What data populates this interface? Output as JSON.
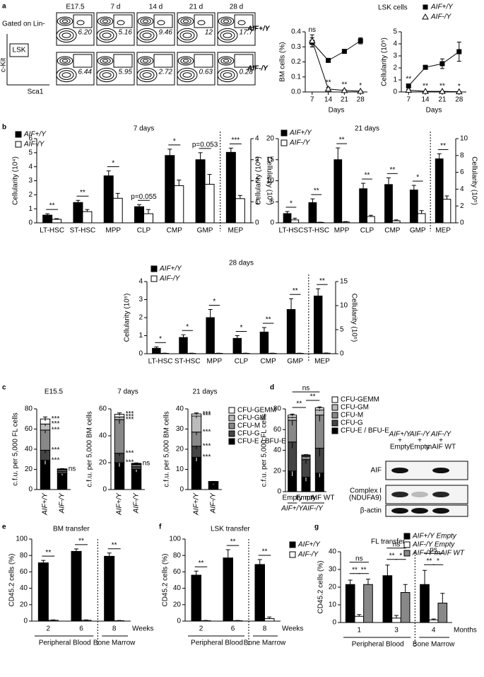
{
  "flow": {
    "panel": "a",
    "columns": [
      "E17.5",
      "7 d",
      "14 d",
      "21 d",
      "28 d"
    ],
    "gate": "Gated on Lin-",
    "gate_box": "LSK",
    "ylabel": "c-Kit",
    "xlabel": "Sca1",
    "rows": [
      {
        "name": "AIF+/Y",
        "values": [
          "6.20",
          "5.16",
          "9.46",
          "12",
          "17.7"
        ]
      },
      {
        "name": "AIF-/Y",
        "values": [
          "6.44",
          "5.95",
          "2.72",
          "0.63",
          "0.28"
        ]
      }
    ]
  },
  "chart_data": [
    {
      "type": "line",
      "ylabel": "BM cells (%)",
      "xlabel": "Days",
      "x": [
        7,
        14,
        21,
        28
      ],
      "xlim": [
        4,
        31
      ],
      "xticks": [
        7,
        14,
        21,
        28
      ],
      "ylim": [
        0,
        0.4
      ],
      "yticks": [
        {
          "value": 0,
          "label": "0.0"
        },
        0.1,
        0.2,
        0.3,
        0.4
      ],
      "series": [
        {
          "color": "#000000",
          "marker": "square",
          "values": [
            0.33,
            0.21,
            0.27,
            0.34
          ],
          "errors": [
            0.03,
            0.01,
            0.01,
            0.02
          ]
        },
        {
          "color": "#000000",
          "marker": "triangle",
          "values": [
            0.34,
            0.02,
            0.01,
            0.005
          ],
          "errors": [
            0.04,
            0.01,
            0.005,
            0.003
          ]
        }
      ],
      "annotations": [
        "ns",
        "**",
        "**",
        "*"
      ]
    },
    {
      "type": "line",
      "title": "LSK cells",
      "ylabel": "Cellularity (10⁵)",
      "xlabel": "Days",
      "x": [
        7,
        14,
        21,
        28
      ],
      "xlim": [
        4,
        31
      ],
      "xticks": [
        7,
        14,
        21,
        28
      ],
      "ylim": [
        0,
        5
      ],
      "yticks": [
        0,
        1,
        2,
        3,
        4,
        5
      ],
      "series": [
        {
          "name": "AIF+/Y",
          "color": "#000000",
          "marker": "square",
          "values": [
            0.5,
            2.05,
            2.35,
            3.35
          ],
          "errors": [
            0.15,
            0.05,
            0.4,
            0.8
          ]
        },
        {
          "name": "AIF-/Y",
          "color": "#000000",
          "marker": "triangle",
          "values": [
            0.15,
            0.05,
            0.05,
            0.02
          ],
          "errors": [
            0.05,
            0.02,
            0.02,
            0.01
          ]
        }
      ],
      "annotations": [
        "**",
        "**",
        "**",
        "*"
      ]
    },
    {
      "type": "bar",
      "panel": "b",
      "title": "7 days",
      "ylabel": "Cellularity (10⁴)",
      "y2label": "Cellularity (10⁵)",
      "categories": [
        "LT-HSC",
        "ST-HSC",
        "MPP",
        "CLP",
        "CMP",
        "GMP",
        "MEP"
      ],
      "ylim": [
        0,
        6
      ],
      "yticks": [
        0,
        1,
        2,
        3,
        4,
        5,
        6
      ],
      "y2lim": [
        0,
        4
      ],
      "y2ticks": [
        0,
        1,
        2,
        3,
        4
      ],
      "series": [
        {
          "name": "AIF+/Y",
          "color": "#000000",
          "values": [
            0.55,
            1.45,
            3.35,
            1.15,
            4.8,
            4.5,
            null
          ],
          "errors": [
            0.1,
            0.15,
            0.35,
            0.15,
            0.45,
            0.5,
            null
          ]
        },
        {
          "name": "AIF-/Y",
          "color": "#ffffff",
          "values": [
            0.25,
            0.8,
            1.75,
            0.65,
            2.65,
            2.75,
            null
          ],
          "errors": [
            0.05,
            0.15,
            0.35,
            0.3,
            0.4,
            0.7,
            null
          ]
        },
        {
          "axis": "y2",
          "color": "#000000",
          "values": [
            null,
            null,
            null,
            null,
            null,
            null,
            3.35
          ],
          "errors": [
            null,
            null,
            null,
            null,
            null,
            null,
            0.2
          ]
        },
        {
          "axis": "y2",
          "color": "#ffffff",
          "values": [
            null,
            null,
            null,
            null,
            null,
            null,
            1.15
          ],
          "errors": [
            null,
            null,
            null,
            null,
            null,
            null,
            0.15
          ]
        }
      ],
      "annotations": [
        "**",
        "**",
        "*",
        "p=0.055",
        "*",
        "p=0.053",
        "***"
      ]
    },
    {
      "type": "bar",
      "title": "21 days",
      "ylabel": "Cellularity (10⁴)",
      "y2label": "Cellularity (10⁵)",
      "categories": [
        "LT-HSC",
        "ST-HSC",
        "MPP",
        "CLP",
        "CMP",
        "GMP",
        "MEP"
      ],
      "ylim": [
        0,
        20
      ],
      "yticks": [
        0,
        5,
        10,
        15,
        20
      ],
      "y2lim": [
        0,
        10
      ],
      "y2ticks": [
        0,
        2,
        4,
        6,
        8,
        10
      ],
      "series": [
        {
          "name": "AIF+/Y",
          "color": "#000000",
          "values": [
            2.2,
            4.8,
            15,
            8.1,
            9.1,
            7.8,
            null
          ],
          "errors": [
            0.5,
            0.9,
            2.8,
            1.3,
            1.6,
            1.1,
            null
          ]
        },
        {
          "name": "AIF-/Y",
          "color": "#ffffff",
          "values": [
            0.7,
            0.1,
            0.2,
            1.5,
            0.5,
            2.2,
            null
          ],
          "errors": [
            0.4,
            0.05,
            0.1,
            0.3,
            0.2,
            0.7,
            null
          ]
        },
        {
          "axis": "y2",
          "color": "#000000",
          "values": [
            null,
            null,
            null,
            null,
            null,
            null,
            7.6
          ],
          "errors": [
            null,
            null,
            null,
            null,
            null,
            null,
            0.6
          ]
        },
        {
          "axis": "y2",
          "color": "#ffffff",
          "values": [
            null,
            null,
            null,
            null,
            null,
            null,
            2.8
          ],
          "errors": [
            null,
            null,
            null,
            null,
            null,
            null,
            0.4
          ]
        }
      ],
      "annotations": [
        "*",
        "**",
        "**",
        "**",
        "**",
        "*",
        "**"
      ]
    },
    {
      "type": "bar",
      "title": "28 days",
      "ylabel": "Cellularity (10⁵)",
      "y2label": "Cellularity (10⁵)",
      "categories": [
        "LT-HSC",
        "ST-HSC",
        "MPP",
        "CLP",
        "CMP",
        "GMP",
        "MEP"
      ],
      "ylim": [
        0,
        4
      ],
      "yticks": [
        0,
        1,
        2,
        3,
        4
      ],
      "y2lim": [
        0,
        15
      ],
      "y2ticks": [
        0,
        5,
        10,
        15
      ],
      "series": [
        {
          "name": "AIF+/Y",
          "color": "#000000",
          "values": [
            0.3,
            0.9,
            2.0,
            0.85,
            1.2,
            2.45,
            null
          ],
          "errors": [
            0.08,
            0.15,
            0.45,
            0.15,
            0.25,
            0.6,
            null
          ]
        },
        {
          "name": "AIF-/Y",
          "color": "#ffffff",
          "values": [
            0.02,
            0.02,
            0.02,
            0.02,
            0.02,
            0.02,
            null
          ],
          "errors": [
            0.01,
            0.01,
            0.01,
            0.01,
            0.01,
            0.01,
            null
          ]
        },
        {
          "axis": "y2",
          "color": "#000000",
          "values": [
            null,
            null,
            null,
            null,
            null,
            null,
            12
          ],
          "errors": [
            null,
            null,
            null,
            null,
            null,
            null,
            1.5
          ]
        },
        {
          "axis": "y2",
          "color": "#ffffff",
          "values": [
            null,
            null,
            null,
            null,
            null,
            null,
            0.1
          ],
          "errors": [
            null,
            null,
            null,
            null,
            null,
            null,
            0.05
          ]
        }
      ],
      "annotations": [
        "*",
        "*",
        "*",
        "*",
        "**",
        "**",
        "**"
      ]
    },
    {
      "type": "stacked_bar",
      "panel": "c",
      "title": "E15.5",
      "ylabel": "c.f.u. per 5,000 FL cells",
      "categories": [
        "AIF+/Y",
        "AIF-/Y"
      ],
      "ylim": [
        0,
        80
      ],
      "yticks": [
        0,
        20,
        40,
        60,
        80
      ],
      "series": [
        {
          "color": "#000000",
          "values": [
            29,
            16
          ],
          "errors": [
            4,
            2
          ]
        },
        {
          "color": "#444444",
          "values": [
            10,
            2
          ],
          "errors": [
            3,
            0.5
          ]
        },
        {
          "color": "#888888",
          "values": [
            20,
            1.5
          ],
          "errors": [
            3,
            0.5
          ]
        },
        {
          "color": "#bbbbbb",
          "values": [
            6,
            0.5
          ],
          "errors": [
            2,
            0.3
          ]
        },
        {
          "color": "#ffffff",
          "values": [
            5,
            0.5
          ],
          "errors": [
            2,
            0.3
          ]
        }
      ],
      "annotations": [
        [
          "***",
          "***",
          "***",
          "***",
          "***"
        ],
        [
          null,
          null,
          null,
          null,
          "ns"
        ]
      ]
    },
    {
      "type": "stacked_bar",
      "title": "7 days",
      "ylabel": "c.f.u. per 5,000 BM cells",
      "categories": [
        "AIF+/Y",
        "AIF-/Y"
      ],
      "ylim": [
        0,
        60
      ],
      "yticks": [
        0,
        20,
        40,
        60
      ],
      "series": [
        {
          "color": "#000000",
          "values": [
            20,
            15
          ],
          "errors": [
            3,
            2
          ]
        },
        {
          "color": "#444444",
          "values": [
            7,
            2
          ],
          "errors": [
            2,
            0.5
          ]
        },
        {
          "color": "#888888",
          "values": [
            25,
            1.5
          ],
          "errors": [
            3,
            0.5
          ]
        },
        {
          "color": "#bbbbbb",
          "values": [
            2,
            0.5
          ],
          "errors": [
            1,
            0.3
          ]
        },
        {
          "color": "#ffffff",
          "values": [
            2,
            0.5
          ],
          "errors": [
            1,
            0.3
          ]
        }
      ],
      "annotations": [
        [
          "***",
          "***",
          "***",
          "***",
          "***"
        ],
        [
          null,
          null,
          null,
          null,
          "ns"
        ]
      ]
    },
    {
      "type": "stacked_bar",
      "title": "21 days",
      "ylabel": "c.f.u. per 5,000 BM cells",
      "categories": [
        "AIF+/Y",
        "AIF-/Y"
      ],
      "ylim": [
        0,
        40
      ],
      "yticks": [
        0,
        10,
        20,
        30,
        40
      ],
      "series": [
        {
          "name": "CFU-E / BFU-E",
          "color": "#000000",
          "values": [
            16,
            3
          ],
          "errors": [
            2,
            0.5
          ]
        },
        {
          "name": "CFU-G",
          "color": "#444444",
          "values": [
            5.5,
            0.4
          ],
          "errors": [
            1.5,
            0.2
          ]
        },
        {
          "name": "CFU-M",
          "color": "#888888",
          "values": [
            7,
            0.3
          ],
          "errors": [
            1.5,
            0.2
          ]
        },
        {
          "name": "CFU-GM",
          "color": "#bbbbbb",
          "values": [
            8,
            0.2
          ],
          "errors": [
            1,
            0.1
          ]
        },
        {
          "name": "CFU-GEMM",
          "color": "#ffffff",
          "values": [
            1,
            0.1
          ],
          "errors": [
            0.5,
            0.05
          ]
        }
      ],
      "annotations": [
        [
          "***",
          "***",
          "***",
          "***",
          "***"
        ],
        [
          null,
          null,
          null,
          null,
          null
        ]
      ]
    },
    {
      "type": "stacked_bar",
      "panel": "d",
      "ylabel": "c.f.u. per 5,000 FL cells",
      "categories": [
        "Empty",
        "Empty",
        "mAIF WT"
      ],
      "group_labels": [
        "AIF+/Y",
        "AIF-/Y"
      ],
      "ylim": [
        0,
        80
      ],
      "yticks": [
        0,
        20,
        40,
        60,
        80
      ],
      "series": [
        {
          "name": "CFU-E / BFU-E",
          "color": "#000000",
          "values": [
            20,
            14,
            18
          ],
          "errors": [
            5,
            4,
            4
          ]
        },
        {
          "name": "CFU-G",
          "color": "#444444",
          "values": [
            28,
            17,
            24
          ],
          "errors": [
            6,
            4,
            8
          ]
        },
        {
          "name": "CFU-M",
          "color": "#888888",
          "values": [
            21,
            3,
            32
          ],
          "errors": [
            5,
            1,
            6
          ]
        },
        {
          "name": "CFU-GM",
          "color": "#bbbbbb",
          "values": [
            3,
            1,
            5
          ],
          "errors": [
            1,
            0.5,
            1
          ]
        },
        {
          "name": "CFU-GEMM",
          "color": "#ffffff",
          "values": [
            2,
            0.5,
            2
          ],
          "errors": [
            1,
            0.3,
            1
          ]
        }
      ],
      "comparisons": [
        "**",
        "**",
        "ns"
      ]
    },
    {
      "type": "bar",
      "panel": "e",
      "title": "BM transfer",
      "ylabel": "CD45.2 cells (%)",
      "categories": [
        "2",
        "6",
        "8"
      ],
      "xunit": "Weeks",
      "group_labels": [
        "Peripheral Blood",
        "Bone Marrow"
      ],
      "ylim": [
        0,
        100
      ],
      "yticks": [
        0,
        20,
        40,
        60,
        80,
        100
      ],
      "series": [
        {
          "color": "#000000",
          "values": [
            71,
            85,
            79
          ],
          "errors": [
            3,
            3,
            4
          ]
        },
        {
          "color": "#ffffff",
          "values": [
            1,
            1,
            0.5
          ],
          "errors": [
            0.5,
            0.5,
            0.3
          ]
        }
      ],
      "annotations": [
        "**",
        "**",
        "**"
      ]
    },
    {
      "type": "bar",
      "panel": "f",
      "title": "LSK transfer",
      "ylabel": "CD45.2 cells (%)",
      "categories": [
        "2",
        "6",
        "8"
      ],
      "xunit": "Weeks",
      "group_labels": [
        "Peripheral Blood",
        "Bone Marrow"
      ],
      "ylim": [
        0,
        100
      ],
      "yticks": [
        0,
        20,
        40,
        60,
        80,
        100
      ],
      "series": [
        {
          "name": "AIF+/Y",
          "color": "#000000",
          "values": [
            56,
            77,
            69
          ],
          "errors": [
            5,
            10,
            6
          ]
        },
        {
          "name": "AIF-/Y",
          "color": "#ffffff",
          "values": [
            0.5,
            0.5,
            3
          ],
          "errors": [
            0.3,
            0.3,
            2
          ]
        }
      ],
      "annotations": [
        "**",
        "**",
        "**"
      ]
    },
    {
      "type": "bar",
      "panel": "g",
      "title": "FL transfer",
      "ylabel": "CD45.2 cells (%)",
      "categories": [
        "1",
        "3",
        "4"
      ],
      "xunit": "Months",
      "group_labels": [
        "Peripheral Blood",
        "Bone Marrow"
      ],
      "ylim": [
        0,
        40
      ],
      "yticks": [
        0,
        10,
        20,
        30,
        40
      ],
      "series": [
        {
          "name": "AIF+/Y Empty",
          "color": "#000000",
          "values": [
            21.5,
            26.5,
            21.5
          ],
          "errors": [
            2.5,
            6,
            8
          ]
        },
        {
          "name": "AIF-/Y Empty",
          "color": "#ffffff",
          "values": [
            3.5,
            2.5,
            1.5
          ],
          "errors": [
            1,
            1.5,
            0.5
          ]
        },
        {
          "name": "AIF-/Y mAIF WT",
          "color": "#888888",
          "values": [
            21.5,
            17,
            11
          ],
          "errors": [
            3,
            4.5,
            5.5
          ]
        }
      ],
      "annotations": [
        [
          "ns",
          "**",
          "**"
        ],
        [
          "ns",
          "**",
          "*"
        ],
        [
          "ns",
          "**",
          "*"
        ]
      ]
    }
  ],
  "blot": {
    "columns": [
      {
        "genotype": "AIF+/Y",
        "vector": "Empty"
      },
      {
        "genotype": "AIF-/Y",
        "vector": "Empty"
      },
      {
        "genotype": "AIF-/Y",
        "vector": "mAIF WT"
      }
    ],
    "join": "+",
    "rows": [
      [
        "AIF"
      ],
      [
        "Complex I",
        "(NDUFA9)"
      ],
      [
        "β-actin"
      ]
    ]
  }
}
